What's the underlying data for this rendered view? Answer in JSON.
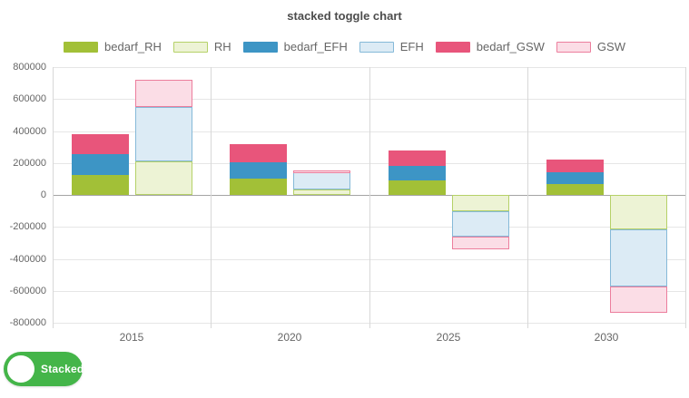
{
  "title": "stacked toggle chart",
  "toggle": {
    "label": "Stacked",
    "state": "on",
    "color": "#44b549"
  },
  "legend": {
    "items": [
      {
        "label": "bedarf_RH",
        "fill": "#a2c037",
        "border": "#a2c037"
      },
      {
        "label": "RH",
        "fill": "#edf3d5",
        "border": "#b5d168"
      },
      {
        "label": "bedarf_EFH",
        "fill": "#3d95c5",
        "border": "#3d95c5"
      },
      {
        "label": "EFH",
        "fill": "#dcebf5",
        "border": "#85b9d8"
      },
      {
        "label": "bedarf_GSW",
        "fill": "#e8557b",
        "border": "#e8557b"
      },
      {
        "label": "GSW",
        "fill": "#fbdde6",
        "border": "#ec7e9d"
      }
    ]
  },
  "chart_data": {
    "type": "bar",
    "stacked": true,
    "title": "stacked toggle chart",
    "categories": [
      "2015",
      "2020",
      "2025",
      "2030"
    ],
    "series": [
      {
        "name": "bedarf_RH",
        "stack": "bedarf",
        "color": "#a2c037",
        "values": [
          125000,
          105000,
          90000,
          70000
        ]
      },
      {
        "name": "bedarf_EFH",
        "stack": "bedarf",
        "color": "#3d95c5",
        "values": [
          130000,
          100000,
          93000,
          72000
        ]
      },
      {
        "name": "bedarf_GSW",
        "stack": "bedarf",
        "color": "#e8557b",
        "values": [
          125000,
          115000,
          95000,
          78000
        ]
      },
      {
        "name": "RH",
        "stack": "ist",
        "color": "#edf3d5",
        "border": "#b5d168",
        "values": [
          210000,
          35000,
          -100000,
          -215000
        ]
      },
      {
        "name": "EFH",
        "stack": "ist",
        "color": "#dcebf5",
        "border": "#85b9d8",
        "values": [
          340000,
          105000,
          -160000,
          -360000
        ]
      },
      {
        "name": "GSW",
        "stack": "ist",
        "color": "#fbdde6",
        "border": "#ec7e9d",
        "values": [
          170000,
          15000,
          -80000,
          -165000
        ]
      }
    ],
    "ylim": [
      -800000,
      800000
    ],
    "yticks": [
      800000,
      600000,
      400000,
      200000,
      0,
      -200000,
      -400000,
      -600000,
      -800000
    ],
    "grid": true,
    "legend_position": "top"
  }
}
